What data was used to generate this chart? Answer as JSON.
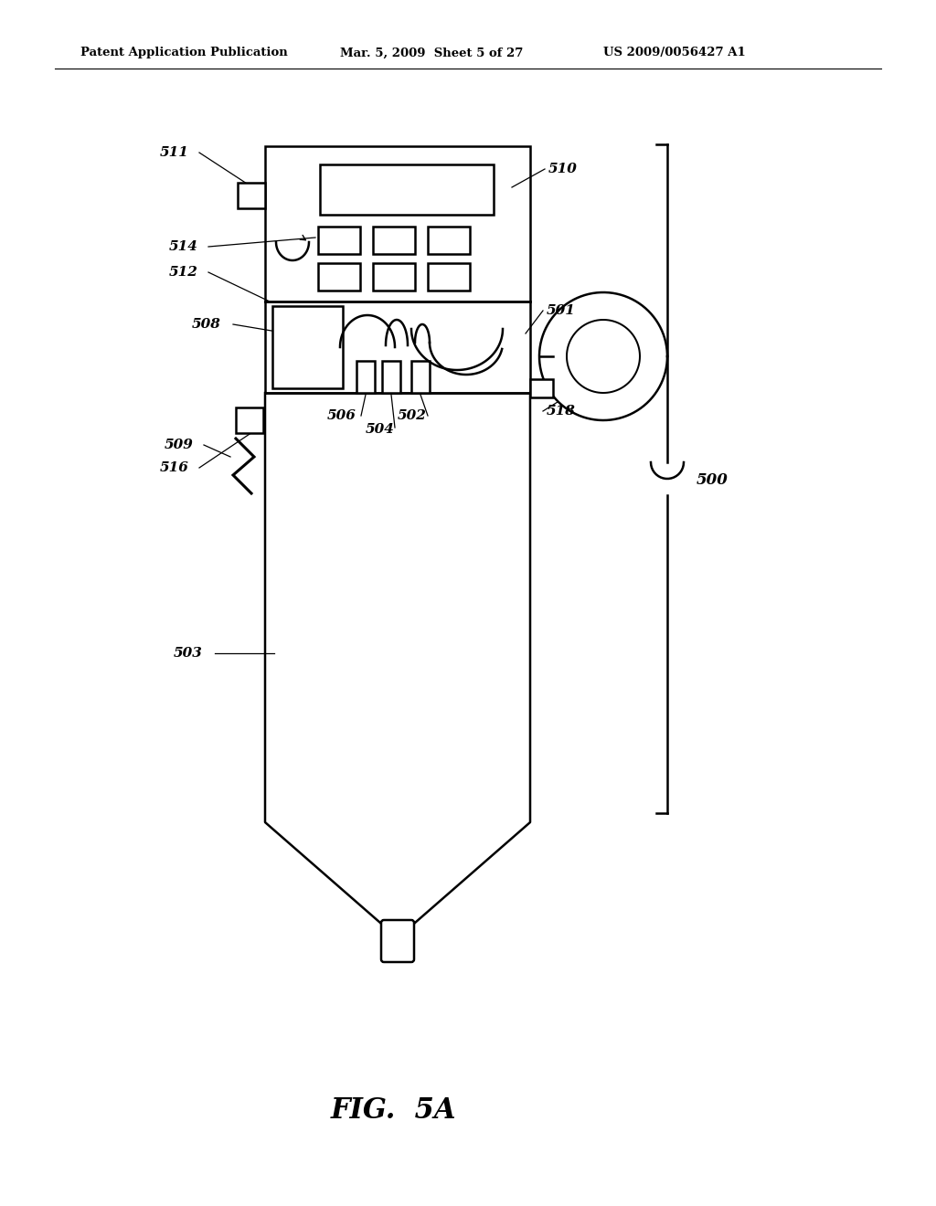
{
  "bg_color": "#ffffff",
  "line_color": "#000000",
  "header_left": "Patent Application Publication",
  "header_mid": "Mar. 5, 2009  Sheet 5 of 27",
  "header_right": "US 2009/0056427 A1",
  "fig_label": "FIG.  5A"
}
